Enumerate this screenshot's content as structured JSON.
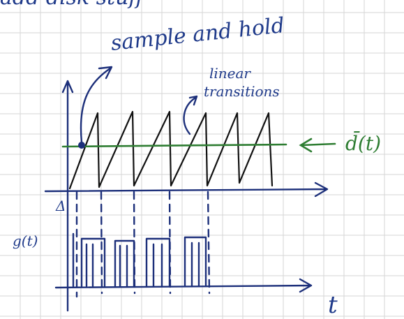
{
  "header": {
    "note": "add disk stuff"
  },
  "labels": {
    "sample_hold": "sample and hold",
    "linear": "linear",
    "transitions": "transitions",
    "duty": "d̄(t)",
    "gate": "g(t)",
    "delta": "Δ",
    "time": "t"
  }
}
